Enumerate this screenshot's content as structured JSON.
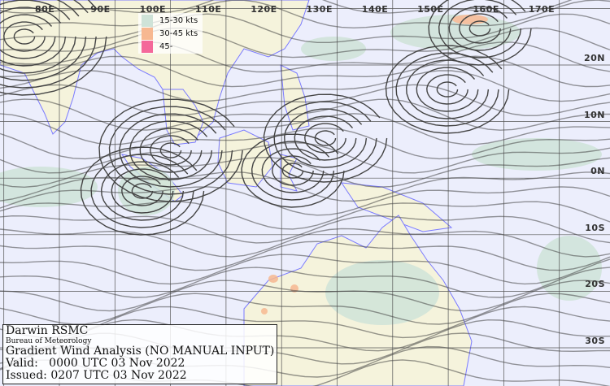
{
  "map": {
    "colors": {
      "ocean": "#eceefc",
      "land": "#f5f3dc",
      "coastline": "#7a7aff",
      "streamline": "#444444",
      "grid": "#555555"
    },
    "longitude_labels": [
      "80E",
      "90E",
      "100E",
      "110E",
      "120E",
      "130E",
      "140E",
      "150E",
      "160E",
      "170E"
    ],
    "latitude_labels": [
      "20N",
      "10N",
      "0N",
      "10S",
      "20S",
      "30S"
    ]
  },
  "legend": {
    "items": [
      {
        "label": "15-30 kts",
        "color": "#cfe3d8"
      },
      {
        "label": "30-45 kts",
        "color": "#f7b891"
      },
      {
        "label": "45-",
        "color": "#f4689a"
      }
    ]
  },
  "info": {
    "center": "Darwin RSMC",
    "agency": "Bureau of Meteorology",
    "product": "Gradient Wind Analysis (NO MANUAL INPUT)",
    "valid": "Valid:   0000 UTC 03 Nov 2022",
    "issued": "Issued: 0207 UTC 03 Nov 2022"
  }
}
